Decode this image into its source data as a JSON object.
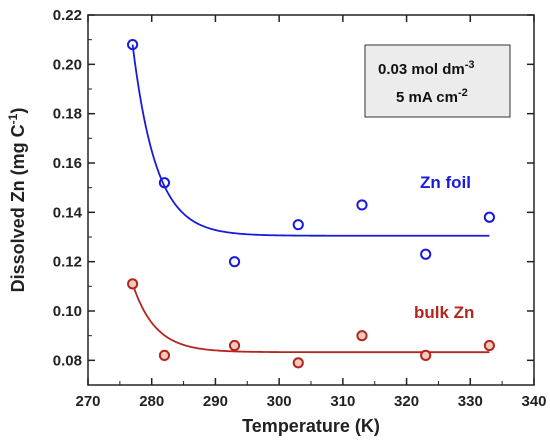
{
  "chart_data": {
    "type": "scatter",
    "title": "",
    "xlabel": "Temperature (K)",
    "ylabel_main": "Dissolved Zn (mg C",
    "ylabel_sup": "-1",
    "ylabel_end": ")",
    "xlim": [
      270,
      340
    ],
    "ylim": [
      0.07,
      0.22
    ],
    "xticks": [
      270,
      280,
      290,
      300,
      310,
      320,
      330,
      340
    ],
    "yticks": [
      0.08,
      0.1,
      0.12,
      0.14,
      0.16,
      0.18,
      0.2,
      0.22
    ],
    "x_tick_labels": [
      "270",
      "280",
      "290",
      "300",
      "310",
      "320",
      "330",
      "340"
    ],
    "y_tick_labels": [
      "0.08",
      "0.10",
      "0.12",
      "0.14",
      "0.16",
      "0.18",
      "0.20",
      "0.22"
    ],
    "grid": false,
    "series": [
      {
        "name": "Zn foil",
        "color": "#1a1adc",
        "x": [
          277,
          282,
          293,
          303,
          313,
          323,
          333
        ],
        "y": [
          0.208,
          0.152,
          0.12,
          0.135,
          0.143,
          0.123,
          0.138
        ],
        "fit": {
          "asymptote": 0.1305,
          "amplitude": 0.0775,
          "x0": 277,
          "rate": 0.27
        }
      },
      {
        "name": "bulk Zn",
        "color": "#b3261e",
        "x": [
          277,
          282,
          293,
          303,
          313,
          323,
          333
        ],
        "y": [
          0.111,
          0.082,
          0.086,
          0.079,
          0.09,
          0.082,
          0.086
        ],
        "fit": {
          "asymptote": 0.0833,
          "amplitude": 0.0277,
          "x0": 277,
          "rate": 0.28
        }
      }
    ],
    "annotation": {
      "line1_main": "0.03 mol dm",
      "line1_sup": "-3",
      "line2_main": "5 mA cm",
      "line2_sup": "-2"
    }
  }
}
